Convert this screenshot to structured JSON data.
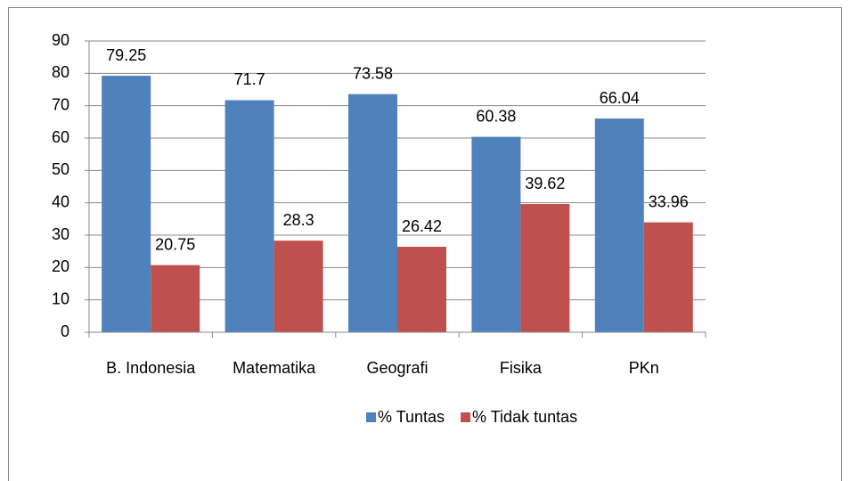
{
  "chart_data": {
    "type": "bar",
    "categories": [
      "B. Indonesia",
      "Matematika",
      "Geografi",
      "Fisika",
      "PKn"
    ],
    "series": [
      {
        "name": "% Tuntas",
        "color": "#4f81bd",
        "values": [
          79.25,
          71.7,
          73.58,
          60.38,
          66.04
        ]
      },
      {
        "name": "% Tidak tuntas",
        "color": "#c0504d",
        "values": [
          20.75,
          28.3,
          26.42,
          39.62,
          33.96
        ]
      }
    ],
    "ylim": [
      0,
      90
    ],
    "yticks": [
      0,
      10,
      20,
      30,
      40,
      50,
      60,
      70,
      80,
      90
    ],
    "grid": true,
    "legend": "bottom"
  }
}
